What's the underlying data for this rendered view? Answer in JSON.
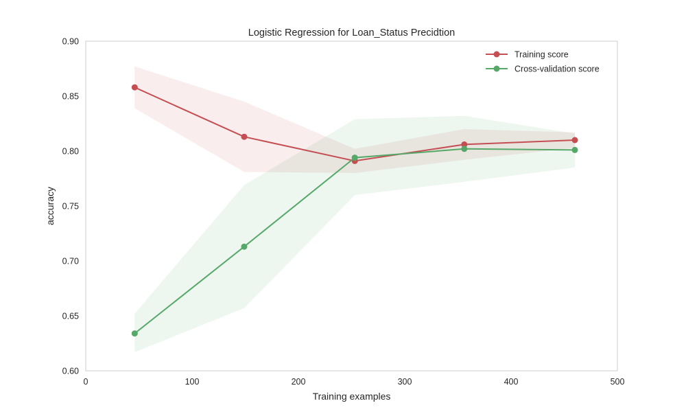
{
  "chart_data": {
    "type": "line",
    "title": "Logistic Regression for Loan_Status Precidtion",
    "xlabel": "Training examples",
    "ylabel": "accuracy",
    "xlim": [
      0,
      500
    ],
    "ylim": [
      0.6,
      0.9
    ],
    "xticks": [
      0,
      100,
      200,
      300,
      400,
      500
    ],
    "xtick_labels": [
      "0",
      "100",
      "200",
      "300",
      "400",
      "500"
    ],
    "yticks": [
      0.6,
      0.65,
      0.7,
      0.75,
      0.8,
      0.85,
      0.9
    ],
    "ytick_labels": [
      "0.60",
      "0.65",
      "0.70",
      "0.75",
      "0.80",
      "0.85",
      "0.90"
    ],
    "grid": false,
    "legend_position": "top-right",
    "x": [
      46,
      149,
      253,
      356,
      460
    ],
    "series": [
      {
        "name": "Training score",
        "color": "#c44e52",
        "values": [
          0.858,
          0.813,
          0.791,
          0.806,
          0.81
        ],
        "band_upper": [
          0.877,
          0.845,
          0.802,
          0.82,
          0.817
        ],
        "band_lower": [
          0.839,
          0.781,
          0.78,
          0.792,
          0.803
        ]
      },
      {
        "name": "Cross-validation score",
        "color": "#55a868",
        "values": [
          0.634,
          0.713,
          0.794,
          0.802,
          0.801
        ],
        "band_upper": [
          0.652,
          0.769,
          0.829,
          0.832,
          0.816
        ],
        "band_lower": [
          0.617,
          0.657,
          0.76,
          0.772,
          0.785
        ]
      }
    ]
  }
}
